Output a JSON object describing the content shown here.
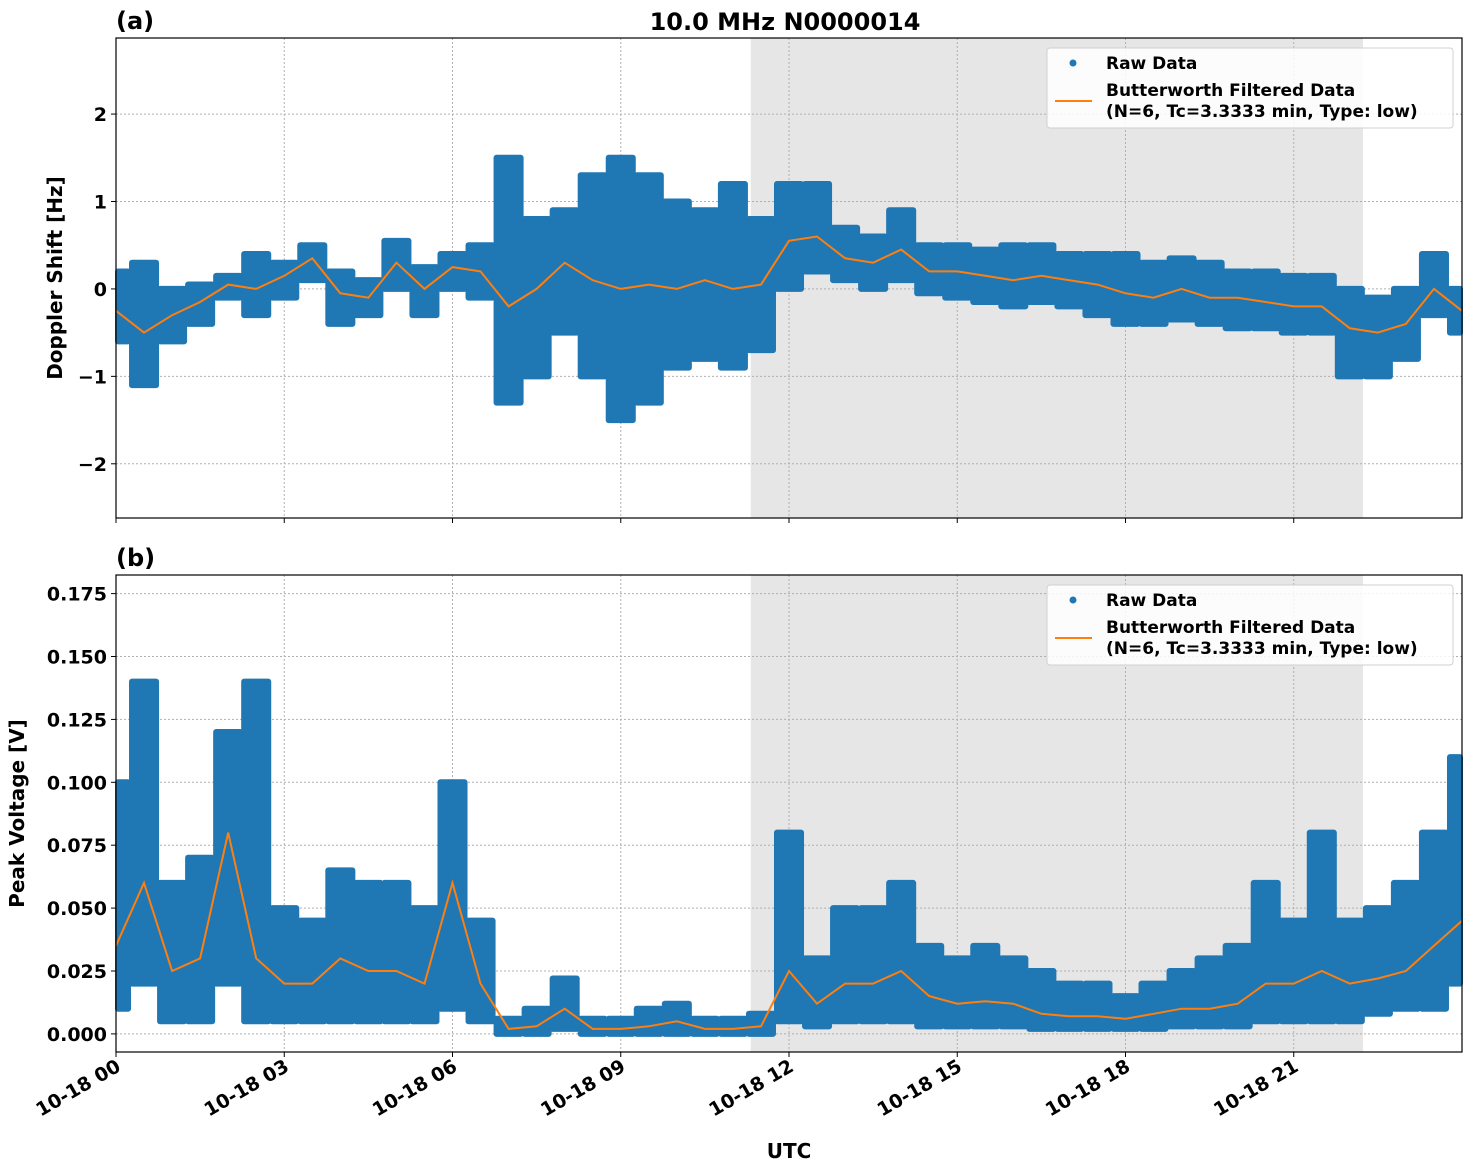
{
  "figure": {
    "title": "10.0 MHz N0000014",
    "xlabel": "UTC",
    "colors": {
      "raw": "#1f77b4",
      "filtered": "#ff7f0e",
      "shade": "#e6e6e6",
      "grid": "#b0b0b0"
    }
  },
  "chart_data": [
    {
      "type": "scatter",
      "panel_label": "(a)",
      "ylabel": "Doppler Shift [Hz]",
      "xlim": [
        "10-18 00:00",
        "10-19 00:00"
      ],
      "ylim": [
        -2.62,
        2.87
      ],
      "x_ticks": [
        "10-18 00",
        "10-18 03",
        "10-18 06",
        "10-18 09",
        "10-18 12",
        "10-18 15",
        "10-18 18",
        "10-18 21"
      ],
      "y_ticks": [
        {
          "v": -2,
          "label": "−2"
        },
        {
          "v": -1,
          "label": "−1"
        },
        {
          "v": 0,
          "label": "0"
        },
        {
          "v": 1,
          "label": "1"
        },
        {
          "v": 2,
          "label": "2"
        }
      ],
      "grid": true,
      "shaded_interval": [
        "10-18 11:19",
        "10-18 22:14"
      ],
      "legend": {
        "placement": "top-right",
        "entries": [
          "Raw Data",
          "Butterworth Filtered Data",
          "(N=6, Tc=3.3333 min, Type: low)"
        ]
      },
      "x": [
        "00:00",
        "00:30",
        "01:00",
        "01:30",
        "02:00",
        "02:30",
        "03:00",
        "03:30",
        "04:00",
        "04:30",
        "05:00",
        "05:30",
        "06:00",
        "06:30",
        "07:00",
        "07:30",
        "08:00",
        "08:30",
        "09:00",
        "09:30",
        "10:00",
        "10:30",
        "11:00",
        "11:30",
        "12:00",
        "12:30",
        "13:00",
        "13:30",
        "14:00",
        "14:30",
        "15:00",
        "15:30",
        "16:00",
        "16:30",
        "17:00",
        "17:30",
        "18:00",
        "18:30",
        "19:00",
        "19:30",
        "20:00",
        "20:30",
        "21:00",
        "21:30",
        "22:00",
        "22:30",
        "23:00",
        "23:30",
        "24:00"
      ],
      "series": [
        {
          "name": "Raw Data",
          "kind": "scatter-envelope",
          "low": [
            -0.6,
            -1.1,
            -0.6,
            -0.4,
            -0.1,
            -0.3,
            -0.1,
            0.1,
            -0.4,
            -0.3,
            0.0,
            -0.3,
            0.0,
            -0.1,
            -1.3,
            -1.0,
            -0.5,
            -1.0,
            -1.5,
            -1.3,
            -0.9,
            -0.8,
            -0.9,
            -0.7,
            0.0,
            0.2,
            0.1,
            0.0,
            0.1,
            -0.05,
            -0.1,
            -0.15,
            -0.2,
            -0.15,
            -0.2,
            -0.3,
            -0.4,
            -0.4,
            -0.35,
            -0.4,
            -0.45,
            -0.45,
            -0.5,
            -0.5,
            -1.0,
            -1.0,
            -0.8,
            -0.3,
            -0.5
          ],
          "high": [
            0.2,
            0.3,
            0.0,
            0.05,
            0.15,
            0.4,
            0.3,
            0.5,
            0.2,
            0.1,
            0.55,
            0.25,
            0.4,
            0.5,
            1.5,
            0.8,
            0.9,
            1.3,
            1.5,
            1.3,
            1.0,
            0.9,
            1.2,
            0.8,
            1.2,
            1.2,
            0.7,
            0.6,
            0.9,
            0.5,
            0.5,
            0.45,
            0.5,
            0.5,
            0.4,
            0.4,
            0.4,
            0.3,
            0.35,
            0.3,
            0.2,
            0.2,
            0.15,
            0.15,
            0.0,
            -0.1,
            0.0,
            0.4,
            0.0
          ]
        },
        {
          "name": "Butterworth Filtered Data",
          "kind": "line",
          "values": [
            -0.25,
            -0.5,
            -0.3,
            -0.15,
            0.05,
            0.0,
            0.15,
            0.35,
            -0.05,
            -0.1,
            0.3,
            0.0,
            0.25,
            0.2,
            -0.2,
            0.0,
            0.3,
            0.1,
            0.0,
            0.05,
            0.0,
            0.1,
            0.0,
            0.05,
            0.55,
            0.6,
            0.35,
            0.3,
            0.45,
            0.2,
            0.2,
            0.15,
            0.1,
            0.15,
            0.1,
            0.05,
            -0.05,
            -0.1,
            0.0,
            -0.1,
            -0.1,
            -0.15,
            -0.2,
            -0.2,
            -0.45,
            -0.5,
            -0.4,
            0.0,
            -0.25
          ]
        }
      ]
    },
    {
      "type": "scatter",
      "panel_label": "(b)",
      "ylabel": "Peak Voltage [V]",
      "xlim": [
        "10-18 00:00",
        "10-19 00:00"
      ],
      "ylim": [
        -0.0072,
        0.1824
      ],
      "x_ticks": [
        "10-18 00",
        "10-18 03",
        "10-18 06",
        "10-18 09",
        "10-18 12",
        "10-18 15",
        "10-18 18",
        "10-18 21"
      ],
      "y_ticks": [
        {
          "v": 0,
          "label": "0.000"
        },
        {
          "v": 0.025,
          "label": "0.025"
        },
        {
          "v": 0.05,
          "label": "0.050"
        },
        {
          "v": 0.075,
          "label": "0.075"
        },
        {
          "v": 0.1,
          "label": "0.100"
        },
        {
          "v": 0.125,
          "label": "0.125"
        },
        {
          "v": 0.15,
          "label": "0.150"
        },
        {
          "v": 0.175,
          "label": "0.175"
        }
      ],
      "grid": true,
      "shaded_interval": [
        "10-18 11:19",
        "10-18 22:14"
      ],
      "legend": {
        "placement": "top-right",
        "entries": [
          "Raw Data",
          "Butterworth Filtered Data",
          "(N=6, Tc=3.3333 min, Type: low)"
        ]
      },
      "x": [
        "00:00",
        "00:30",
        "01:00",
        "01:30",
        "02:00",
        "02:30",
        "03:00",
        "03:30",
        "04:00",
        "04:30",
        "05:00",
        "05:30",
        "06:00",
        "06:30",
        "07:00",
        "07:30",
        "08:00",
        "08:30",
        "09:00",
        "09:30",
        "10:00",
        "10:30",
        "11:00",
        "11:30",
        "12:00",
        "12:30",
        "13:00",
        "13:30",
        "14:00",
        "14:30",
        "15:00",
        "15:30",
        "16:00",
        "16:30",
        "17:00",
        "17:30",
        "18:00",
        "18:30",
        "19:00",
        "19:30",
        "20:00",
        "20:30",
        "21:00",
        "21:30",
        "22:00",
        "22:30",
        "23:00",
        "23:30",
        "24:00"
      ],
      "series": [
        {
          "name": "Raw Data",
          "kind": "scatter-envelope",
          "low": [
            0.01,
            0.02,
            0.005,
            0.005,
            0.02,
            0.005,
            0.005,
            0.005,
            0.005,
            0.005,
            0.005,
            0.005,
            0.01,
            0.005,
            0.0,
            0.0,
            0.002,
            0.0,
            0.0,
            0.0,
            0.0,
            0.0,
            0.0,
            0.0,
            0.005,
            0.003,
            0.005,
            0.005,
            0.005,
            0.003,
            0.003,
            0.003,
            0.003,
            0.002,
            0.002,
            0.002,
            0.002,
            0.002,
            0.003,
            0.003,
            0.003,
            0.005,
            0.005,
            0.005,
            0.005,
            0.008,
            0.01,
            0.01,
            0.02
          ],
          "high": [
            0.1,
            0.14,
            0.06,
            0.07,
            0.12,
            0.14,
            0.05,
            0.045,
            0.065,
            0.06,
            0.06,
            0.05,
            0.1,
            0.045,
            0.006,
            0.01,
            0.022,
            0.006,
            0.006,
            0.01,
            0.012,
            0.006,
            0.006,
            0.008,
            0.08,
            0.03,
            0.05,
            0.05,
            0.06,
            0.035,
            0.03,
            0.035,
            0.03,
            0.025,
            0.02,
            0.02,
            0.015,
            0.02,
            0.025,
            0.03,
            0.035,
            0.06,
            0.045,
            0.08,
            0.045,
            0.05,
            0.06,
            0.08,
            0.11
          ]
        },
        {
          "name": "Butterworth Filtered Data",
          "kind": "line",
          "values": [
            0.035,
            0.06,
            0.025,
            0.03,
            0.08,
            0.03,
            0.02,
            0.02,
            0.03,
            0.025,
            0.025,
            0.02,
            0.06,
            0.02,
            0.002,
            0.003,
            0.01,
            0.002,
            0.002,
            0.003,
            0.005,
            0.002,
            0.002,
            0.003,
            0.025,
            0.012,
            0.02,
            0.02,
            0.025,
            0.015,
            0.012,
            0.013,
            0.012,
            0.008,
            0.007,
            0.007,
            0.006,
            0.008,
            0.01,
            0.01,
            0.012,
            0.02,
            0.02,
            0.025,
            0.02,
            0.022,
            0.025,
            0.035,
            0.045
          ]
        }
      ]
    }
  ]
}
